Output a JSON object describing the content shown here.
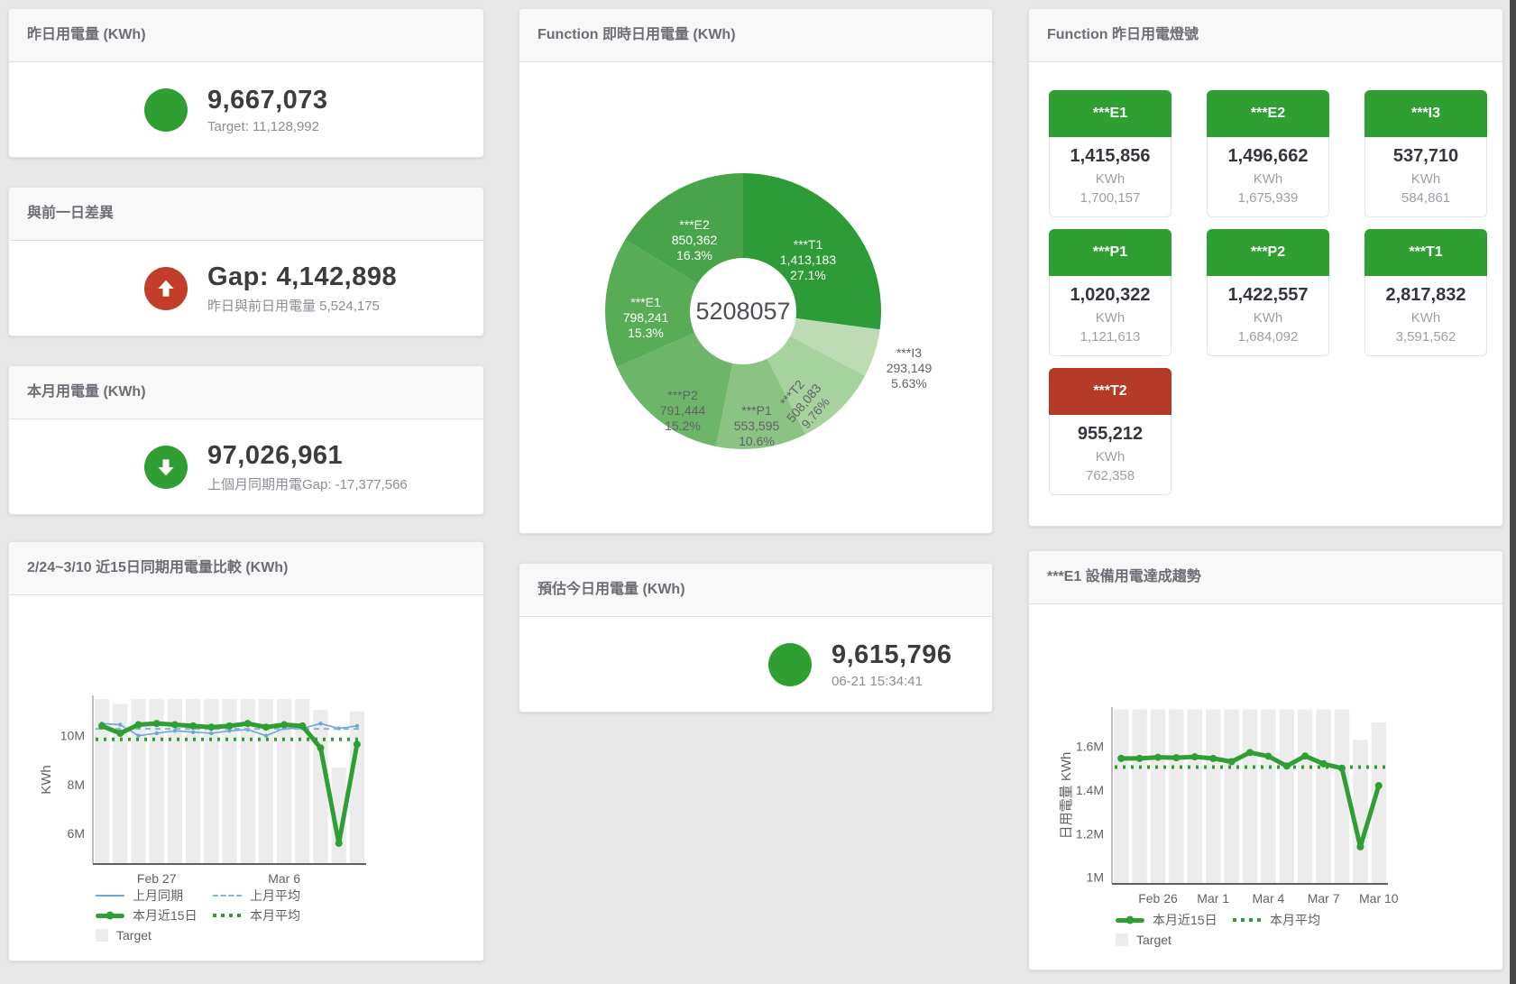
{
  "page_bg": "#e8e8e8",
  "colors": {
    "green": "#2f9e33",
    "red_tile": "#b53a27",
    "red_circle": "#c43d28",
    "target_bar_gray": "#ececec",
    "blue_line": "#6da7d8",
    "blue_dash": "#7fb3e0",
    "title_text": "#6b6e74",
    "value_text": "#3b3c3e",
    "sub_text": "#8b8e94"
  },
  "cards": {
    "yesterday": {
      "title": "昨日用電量 (KWh)",
      "value": "9,667,073",
      "subtitle": "Target: 11,128,992"
    },
    "gap": {
      "title": "與前一日差異",
      "value": "Gap: 4,142,898",
      "subtitle": "昨日與前日用電量 5,524,175"
    },
    "month": {
      "title": "本月用電量 (KWh)",
      "value": "97,026,961",
      "subtitle": "上個月同期用電Gap: -17,377,566"
    },
    "estimate": {
      "title": "預估今日用電量 (KWh)",
      "value": "9,615,796",
      "subtitle": "06-21 15:34:41"
    },
    "donut": {
      "title": "Function 即時日用電量 (KWh)"
    },
    "lights": {
      "title": "Function 昨日用電燈號"
    },
    "compare": {
      "title": "2/24~3/10 近15日同期用電量比較 (KWh)"
    },
    "trend": {
      "title": "***E1 設備用電達成趨勢"
    }
  },
  "lights_tiles": [
    {
      "name": "***E1",
      "value": "1,415,856",
      "unit": "KWh",
      "target": "1,700,157",
      "status": "green"
    },
    {
      "name": "***E2",
      "value": "1,496,662",
      "unit": "KWh",
      "target": "1,675,939",
      "status": "green"
    },
    {
      "name": "***I3",
      "value": "537,710",
      "unit": "KWh",
      "target": "584,861",
      "status": "green"
    },
    {
      "name": "***P1",
      "value": "1,020,322",
      "unit": "KWh",
      "target": "1,121,613",
      "status": "green"
    },
    {
      "name": "***P2",
      "value": "1,422,557",
      "unit": "KWh",
      "target": "1,684,092",
      "status": "green"
    },
    {
      "name": "***T1",
      "value": "2,817,832",
      "unit": "KWh",
      "target": "3,591,562",
      "status": "green"
    },
    {
      "name": "***T2",
      "value": "955,212",
      "unit": "KWh",
      "target": "762,358",
      "status": "red"
    }
  ],
  "chart_data": [
    {
      "type": "pie",
      "title": "Function 即時日用電量 (KWh)",
      "center_label": "5208057",
      "slices": [
        {
          "name": "***T1",
          "value": "1,413,183",
          "pct": "27.1%",
          "share": 27.1,
          "color": "#2d9b37",
          "label_color": "#ffffff"
        },
        {
          "name": "***I3",
          "value": "293,149",
          "pct": "5.63%",
          "share": 5.63,
          "color": "#bedcb4",
          "label_color": "#5f6368",
          "outside": true
        },
        {
          "name": "***T2",
          "value": "508,083",
          "pct": "9.76%",
          "share": 9.76,
          "color": "#a6d29d",
          "label_color": "#5f6368",
          "rotate": -50
        },
        {
          "name": "***P1",
          "value": "553,595",
          "pct": "10.6%",
          "share": 10.6,
          "color": "#8bc482",
          "label_color": "#5f6368"
        },
        {
          "name": "***P2",
          "value": "791,444",
          "pct": "15.2%",
          "share": 15.2,
          "color": "#6db669",
          "label_color": "#5f6368"
        },
        {
          "name": "***E1",
          "value": "798,241",
          "pct": "15.3%",
          "share": 15.3,
          "color": "#58ac55",
          "label_color": "#ffffff"
        },
        {
          "name": "***E2",
          "value": "850,362",
          "pct": "16.3%",
          "share": 16.3,
          "color": "#47a44b",
          "label_color": "#ffffff"
        }
      ]
    },
    {
      "type": "line",
      "title": "2/24~3/10 近15日同期用電量比較 (KWh)",
      "ylabel": "KWh",
      "unit": "M KWh",
      "days": 15,
      "ylim": [
        4.75,
        11.65
      ],
      "yticks": [
        {
          "v": 6,
          "label": "6M"
        },
        {
          "v": 8,
          "label": "8M"
        },
        {
          "v": 10,
          "label": "10M"
        }
      ],
      "xticks": [
        {
          "i": 3,
          "label": "Feb 27"
        },
        {
          "i": 10,
          "label": "Mar 6"
        }
      ],
      "target_bars": [
        11.5,
        11.3,
        11.5,
        11.5,
        11.5,
        11.5,
        11.5,
        11.5,
        11.5,
        11.5,
        11.5,
        11.5,
        11.05,
        8.7,
        11.0
      ],
      "series": [
        {
          "name": "上月同期",
          "style": "solid_thin",
          "color": "#6da7d8",
          "values": [
            10.5,
            10.45,
            10.0,
            10.1,
            10.2,
            10.15,
            10.1,
            10.2,
            10.25,
            10.0,
            10.3,
            10.3,
            10.5,
            10.3,
            10.4
          ]
        },
        {
          "name": "上月平均",
          "style": "dashed",
          "color": "#7fb3e0",
          "value": 10.28
        },
        {
          "name": "本月近15日",
          "style": "solid_thick",
          "color": "#2f9e33",
          "values": [
            10.4,
            10.1,
            10.45,
            10.5,
            10.45,
            10.4,
            10.35,
            10.4,
            10.5,
            10.35,
            10.45,
            10.4,
            9.5,
            5.6,
            9.65
          ]
        },
        {
          "name": "本月平均",
          "style": "dotted",
          "color": "#2f9e33",
          "value": 9.85
        }
      ],
      "legend_rows": [
        [
          {
            "label": "上月同期",
            "style": "solid_thin",
            "color": "#6da7d8"
          },
          {
            "label": "上月平均",
            "style": "dashed",
            "color": "#7fb3e0"
          }
        ],
        [
          {
            "label": "本月近15日",
            "style": "solid_thick",
            "color": "#2f9e33"
          },
          {
            "label": "本月平均",
            "style": "dotted",
            "color": "#2f9e33"
          }
        ],
        [
          {
            "label": "Target",
            "style": "bar",
            "color": "#ececec"
          }
        ]
      ]
    },
    {
      "type": "line",
      "title": "***E1 設備用電達成趨勢",
      "ylabel": "日用電量 KWh",
      "unit": "M KWh",
      "days": 15,
      "ylim": [
        0.97,
        1.78
      ],
      "yticks": [
        {
          "v": 1,
          "label": "1M"
        },
        {
          "v": 1.2,
          "label": "1.2M"
        },
        {
          "v": 1.4,
          "label": "1.4M"
        },
        {
          "v": 1.6,
          "label": "1.6M"
        }
      ],
      "xticks": [
        {
          "i": 2,
          "label": "Feb 26"
        },
        {
          "i": 5,
          "label": "Mar 1"
        },
        {
          "i": 8,
          "label": "Mar 4"
        },
        {
          "i": 11,
          "label": "Mar 7"
        },
        {
          "i": 14,
          "label": "Mar 10"
        }
      ],
      "target_bars": [
        1.77,
        1.77,
        1.77,
        1.77,
        1.77,
        1.77,
        1.77,
        1.77,
        1.77,
        1.77,
        1.77,
        1.77,
        1.77,
        1.63,
        1.71
      ],
      "series": [
        {
          "name": "本月近15日",
          "style": "solid_thick",
          "color": "#2f9e33",
          "values": [
            1.545,
            1.545,
            1.55,
            1.548,
            1.552,
            1.545,
            1.53,
            1.572,
            1.555,
            1.51,
            1.556,
            1.52,
            1.5,
            1.14,
            1.42
          ]
        },
        {
          "name": "本月平均",
          "style": "dotted",
          "color": "#2f9e33",
          "value": 1.505
        }
      ],
      "legend_rows": [
        [
          {
            "label": "本月近15日",
            "style": "solid_thick",
            "color": "#2f9e33"
          },
          {
            "label": "本月平均",
            "style": "dotted",
            "color": "#2f9e33"
          }
        ],
        [
          {
            "label": "Target",
            "style": "bar",
            "color": "#ececec"
          }
        ]
      ]
    }
  ]
}
